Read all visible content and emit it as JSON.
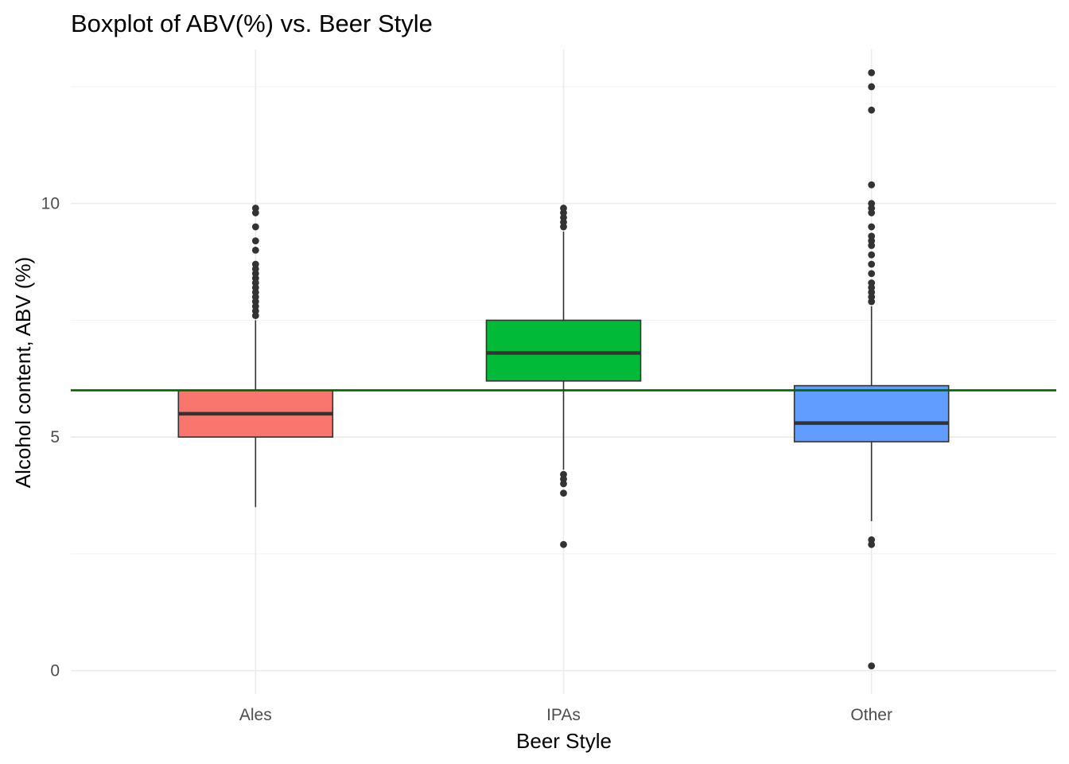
{
  "chart_data": {
    "type": "boxplot",
    "title": "Boxplot of ABV(%) vs. Beer Style",
    "xlabel": "Beer Style",
    "ylabel": "Alcohol content, ABV (%)",
    "categories": [
      "Ales",
      "IPAs",
      "Other"
    ],
    "ylim": [
      -0.5,
      13.3
    ],
    "y_ticks": [
      0,
      5,
      10
    ],
    "y_tick_labels": [
      "0",
      "5",
      "10"
    ],
    "grid": true,
    "reference_line": {
      "y": 6.0,
      "color": "#006400"
    },
    "series": [
      {
        "category": "Ales",
        "color": "#F8766D",
        "whisker_low": 3.5,
        "q1": 5.0,
        "median": 5.5,
        "q3": 6.0,
        "whisker_high": 7.5,
        "outliers": [
          7.6,
          7.7,
          7.8,
          7.9,
          8.0,
          8.1,
          8.2,
          8.3,
          8.4,
          8.5,
          8.6,
          8.7,
          9.0,
          9.2,
          9.5,
          9.8,
          9.9
        ]
      },
      {
        "category": "IPAs",
        "color": "#00BA38",
        "whisker_low": 4.3,
        "q1": 6.2,
        "median": 6.8,
        "q3": 7.5,
        "whisker_high": 9.4,
        "outliers": [
          2.7,
          3.8,
          4.0,
          4.1,
          4.2,
          9.5,
          9.6,
          9.7,
          9.8,
          9.9
        ]
      },
      {
        "category": "Other",
        "color": "#619CFF",
        "whisker_low": 3.2,
        "q1": 4.9,
        "median": 5.3,
        "q3": 6.1,
        "whisker_high": 7.8,
        "outliers": [
          0.1,
          2.7,
          2.8,
          7.9,
          8.0,
          8.1,
          8.2,
          8.3,
          8.5,
          8.7,
          8.9,
          9.1,
          9.2,
          9.3,
          9.5,
          9.8,
          9.9,
          10.0,
          10.4,
          12.0,
          12.5,
          12.8
        ]
      }
    ]
  }
}
